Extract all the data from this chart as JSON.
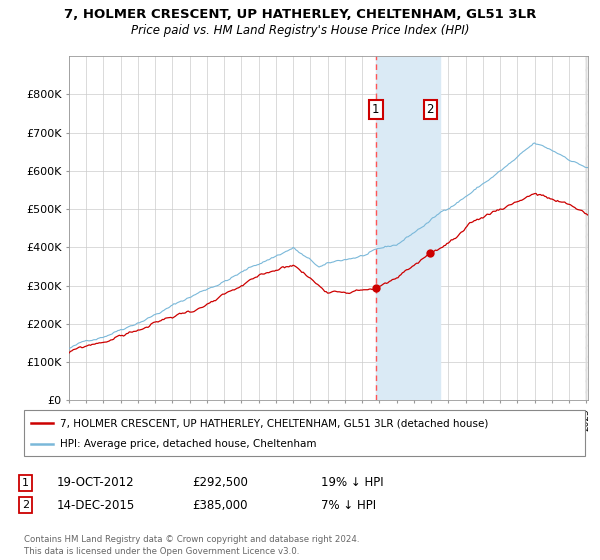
{
  "title_line1": "7, HOLMER CRESCENT, UP HATHERLEY, CHELTENHAM, GL51 3LR",
  "title_line2": "Price paid vs. HM Land Registry's House Price Index (HPI)",
  "legend_line1": "7, HOLMER CRESCENT, UP HATHERLEY, CHELTENHAM, GL51 3LR (detached house)",
  "legend_line2": "HPI: Average price, detached house, Cheltenham",
  "transaction1_date": "19-OCT-2012",
  "transaction1_price": 292500,
  "transaction2_date": "14-DEC-2015",
  "transaction2_price": 385000,
  "footer": "Contains HM Land Registry data © Crown copyright and database right 2024.\nThis data is licensed under the Open Government Licence v3.0.",
  "hpi_color": "#7ab8d9",
  "property_color": "#cc0000",
  "background_color": "#ffffff",
  "grid_color": "#cccccc",
  "highlight_color": "#daeaf5",
  "dashed_line_color": "#ff5555",
  "ylim": [
    0,
    900000
  ],
  "yticks": [
    0,
    100000,
    200000,
    300000,
    400000,
    500000,
    600000,
    700000,
    800000
  ],
  "ytick_labels": [
    "£0",
    "£100K",
    "£200K",
    "£300K",
    "£400K",
    "£500K",
    "£600K",
    "£700K",
    "£800K"
  ],
  "transaction1_x": 2012.8,
  "transaction2_x": 2015.95,
  "highlight_start": 2012.8,
  "highlight_end": 2016.5,
  "xmin": 1995.0,
  "xmax": 2025.1
}
